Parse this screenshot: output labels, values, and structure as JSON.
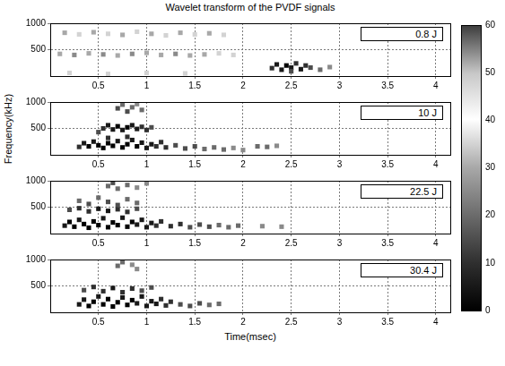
{
  "chart_data": [
    {
      "type": "heatmap",
      "title": "Wavelet transform of the PVDF signals",
      "annotation": "0.8 J",
      "xlim": [
        0,
        4.15
      ],
      "xticks": [
        0.5,
        1,
        1.5,
        2,
        2.5,
        3,
        3.5,
        4
      ],
      "ylim": [
        0,
        1000
      ],
      "yticks": [
        500,
        1000
      ],
      "grid": true,
      "colorbar": {
        "range": [
          0,
          60
        ],
        "ticks": [
          0,
          10,
          20,
          30,
          40,
          50,
          60
        ]
      },
      "cells": [
        [
          0.15,
          820,
          30
        ],
        [
          0.3,
          790,
          35
        ],
        [
          0.45,
          830,
          30
        ],
        [
          0.6,
          800,
          35
        ],
        [
          0.75,
          780,
          30
        ],
        [
          0.9,
          840,
          35
        ],
        [
          1.05,
          800,
          30
        ],
        [
          1.2,
          770,
          35
        ],
        [
          1.35,
          820,
          30
        ],
        [
          1.5,
          790,
          35
        ],
        [
          1.65,
          810,
          30
        ],
        [
          1.8,
          780,
          35
        ],
        [
          0.1,
          420,
          30
        ],
        [
          0.25,
          400,
          25
        ],
        [
          0.4,
          430,
          30
        ],
        [
          0.55,
          410,
          25
        ],
        [
          0.7,
          390,
          30
        ],
        [
          0.85,
          420,
          25
        ],
        [
          1.0,
          440,
          30
        ],
        [
          1.15,
          400,
          30
        ],
        [
          1.3,
          420,
          25
        ],
        [
          1.45,
          390,
          30
        ],
        [
          1.6,
          410,
          30
        ],
        [
          1.75,
          430,
          35
        ],
        [
          1.9,
          400,
          35
        ],
        [
          0.2,
          60,
          35
        ],
        [
          0.6,
          40,
          35
        ],
        [
          1.0,
          60,
          35
        ],
        [
          1.4,
          50,
          35
        ],
        [
          2.3,
          150,
          10
        ],
        [
          2.35,
          220,
          5
        ],
        [
          2.4,
          120,
          5
        ],
        [
          2.45,
          200,
          0
        ],
        [
          2.5,
          160,
          5
        ],
        [
          2.55,
          240,
          10
        ],
        [
          2.6,
          130,
          5
        ],
        [
          2.65,
          200,
          10
        ],
        [
          2.7,
          160,
          15
        ],
        [
          2.8,
          120,
          20
        ],
        [
          2.9,
          170,
          25
        ],
        [
          2.5,
          90,
          15
        ]
      ]
    },
    {
      "type": "heatmap",
      "annotation": "10 J",
      "ylabel": "Frequency(kHz)",
      "xlim": [
        0,
        4.15
      ],
      "xticks": [
        0.5,
        1,
        1.5,
        2,
        2.5,
        3,
        3.5,
        4
      ],
      "ylim": [
        0,
        1000
      ],
      "yticks": [
        500,
        1000
      ],
      "grid": true,
      "cells": [
        [
          0.7,
          880,
          15
        ],
        [
          0.75,
          950,
          20
        ],
        [
          0.8,
          820,
          15
        ],
        [
          0.85,
          900,
          20
        ],
        [
          0.9,
          960,
          25
        ],
        [
          0.95,
          850,
          20
        ],
        [
          0.55,
          500,
          10
        ],
        [
          0.6,
          560,
          5
        ],
        [
          0.65,
          480,
          5
        ],
        [
          0.7,
          540,
          0
        ],
        [
          0.75,
          470,
          5
        ],
        [
          0.8,
          520,
          0
        ],
        [
          0.85,
          560,
          5
        ],
        [
          0.9,
          490,
          5
        ],
        [
          0.95,
          530,
          10
        ],
        [
          1.0,
          470,
          10
        ],
        [
          1.05,
          520,
          15
        ],
        [
          0.5,
          430,
          15
        ],
        [
          0.3,
          150,
          10
        ],
        [
          0.35,
          220,
          5
        ],
        [
          0.4,
          160,
          0
        ],
        [
          0.45,
          250,
          5
        ],
        [
          0.5,
          180,
          0
        ],
        [
          0.55,
          130,
          0
        ],
        [
          0.6,
          220,
          0
        ],
        [
          0.65,
          170,
          0
        ],
        [
          0.7,
          260,
          5
        ],
        [
          0.75,
          140,
          0
        ],
        [
          0.8,
          200,
          0
        ],
        [
          0.85,
          280,
          5
        ],
        [
          0.9,
          160,
          0
        ],
        [
          0.95,
          230,
          5
        ],
        [
          1.0,
          130,
          5
        ],
        [
          1.05,
          200,
          5
        ],
        [
          1.1,
          160,
          10
        ],
        [
          1.15,
          240,
          10
        ],
        [
          1.2,
          140,
          10
        ],
        [
          1.3,
          180,
          15
        ],
        [
          0.6,
          320,
          10
        ],
        [
          0.8,
          340,
          10
        ],
        [
          1.4,
          120,
          15
        ],
        [
          1.5,
          160,
          15
        ],
        [
          1.6,
          110,
          20
        ],
        [
          1.7,
          140,
          20
        ],
        [
          1.8,
          100,
          20
        ],
        [
          1.9,
          130,
          25
        ],
        [
          2.0,
          90,
          25
        ],
        [
          2.15,
          160,
          20
        ],
        [
          2.25,
          150,
          20
        ],
        [
          2.35,
          170,
          25
        ]
      ]
    },
    {
      "type": "heatmap",
      "annotation": "22.5 J",
      "xlim": [
        0,
        4.15
      ],
      "xticks": [
        0.5,
        1,
        1.5,
        2,
        2.5,
        3,
        3.5,
        4
      ],
      "ylim": [
        0,
        1000
      ],
      "yticks": [
        500,
        1000
      ],
      "grid": true,
      "cells": [
        [
          0.6,
          900,
          20
        ],
        [
          0.65,
          960,
          15
        ],
        [
          0.7,
          850,
          20
        ],
        [
          0.8,
          920,
          20
        ],
        [
          0.9,
          870,
          25
        ],
        [
          1.0,
          950,
          25
        ],
        [
          0.3,
          620,
          20
        ],
        [
          0.4,
          560,
          15
        ],
        [
          0.5,
          680,
          20
        ],
        [
          0.6,
          600,
          15
        ],
        [
          0.7,
          540,
          15
        ],
        [
          0.8,
          650,
          20
        ],
        [
          0.9,
          580,
          20
        ],
        [
          0.2,
          450,
          15
        ],
        [
          0.3,
          480,
          10
        ],
        [
          0.4,
          420,
          10
        ],
        [
          0.5,
          470,
          5
        ],
        [
          0.6,
          430,
          5
        ],
        [
          0.7,
          460,
          10
        ],
        [
          0.8,
          410,
          10
        ],
        [
          0.9,
          470,
          15
        ],
        [
          0.15,
          150,
          5
        ],
        [
          0.2,
          220,
          0
        ],
        [
          0.25,
          130,
          0
        ],
        [
          0.3,
          260,
          5
        ],
        [
          0.35,
          180,
          0
        ],
        [
          0.4,
          110,
          0
        ],
        [
          0.45,
          230,
          0
        ],
        [
          0.5,
          160,
          0
        ],
        [
          0.55,
          290,
          5
        ],
        [
          0.6,
          120,
          0
        ],
        [
          0.65,
          210,
          0
        ],
        [
          0.7,
          160,
          0
        ],
        [
          0.75,
          300,
          5
        ],
        [
          0.8,
          130,
          0
        ],
        [
          0.85,
          220,
          0
        ],
        [
          0.9,
          170,
          5
        ],
        [
          0.95,
          260,
          5
        ],
        [
          1.0,
          120,
          5
        ],
        [
          1.05,
          200,
          5
        ],
        [
          1.1,
          150,
          10
        ],
        [
          1.15,
          230,
          10
        ],
        [
          1.25,
          140,
          10
        ],
        [
          1.35,
          180,
          10
        ],
        [
          1.45,
          120,
          15
        ],
        [
          1.55,
          170,
          15
        ],
        [
          1.65,
          130,
          15
        ],
        [
          1.75,
          160,
          20
        ],
        [
          1.85,
          120,
          20
        ],
        [
          1.95,
          150,
          20
        ],
        [
          2.2,
          140,
          25
        ],
        [
          2.4,
          130,
          25
        ]
      ]
    },
    {
      "type": "heatmap",
      "annotation": "30.4 J",
      "xlabel": "Time(msec)",
      "xlim": [
        0,
        4.15
      ],
      "xticks": [
        0.5,
        1,
        1.5,
        2,
        2.5,
        3,
        3.5,
        4
      ],
      "ylim": [
        0,
        1000
      ],
      "yticks": [
        500,
        1000
      ],
      "grid": true,
      "cells": [
        [
          0.7,
          880,
          20
        ],
        [
          0.75,
          950,
          20
        ],
        [
          0.85,
          900,
          25
        ],
        [
          0.9,
          820,
          25
        ],
        [
          0.35,
          420,
          15
        ],
        [
          0.45,
          480,
          10
        ],
        [
          0.55,
          400,
          10
        ],
        [
          0.65,
          460,
          5
        ],
        [
          0.75,
          380,
          10
        ],
        [
          0.85,
          450,
          10
        ],
        [
          0.95,
          410,
          15
        ],
        [
          1.05,
          470,
          15
        ],
        [
          0.3,
          150,
          5
        ],
        [
          0.35,
          240,
          5
        ],
        [
          0.4,
          120,
          0
        ],
        [
          0.45,
          200,
          0
        ],
        [
          0.5,
          300,
          5
        ],
        [
          0.55,
          150,
          0
        ],
        [
          0.6,
          250,
          0
        ],
        [
          0.65,
          110,
          0
        ],
        [
          0.7,
          190,
          0
        ],
        [
          0.75,
          280,
          5
        ],
        [
          0.8,
          140,
          0
        ],
        [
          0.85,
          230,
          0
        ],
        [
          0.9,
          170,
          5
        ],
        [
          0.95,
          300,
          5
        ],
        [
          1.0,
          120,
          5
        ],
        [
          1.05,
          210,
          5
        ],
        [
          1.1,
          160,
          5
        ],
        [
          1.15,
          250,
          10
        ],
        [
          1.2,
          130,
          10
        ],
        [
          1.25,
          200,
          10
        ],
        [
          1.35,
          150,
          15
        ],
        [
          1.45,
          120,
          15
        ],
        [
          1.55,
          170,
          15
        ],
        [
          1.65,
          140,
          20
        ],
        [
          1.75,
          160,
          20
        ]
      ]
    }
  ]
}
